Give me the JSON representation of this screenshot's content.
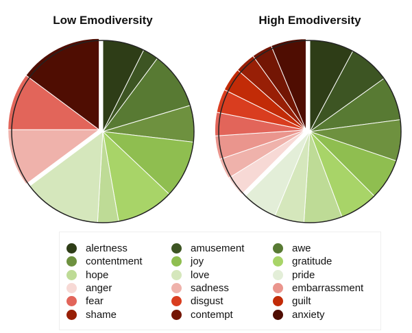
{
  "chart_data": [
    {
      "type": "pie",
      "title": "Low Emodiversity",
      "slices": [
        {
          "label": "alertness",
          "value": 8
        },
        {
          "label": "amusement",
          "value": 3
        },
        {
          "label": "awe",
          "value": 11
        },
        {
          "label": "contentment",
          "value": 7
        },
        {
          "label": "joy",
          "value": 11
        },
        {
          "label": "gratitude",
          "value": 11
        },
        {
          "label": "hope",
          "value": 4
        },
        {
          "label": "love",
          "value": 15
        },
        {
          "label": "sadness",
          "value": 11
        },
        {
          "label": "fear",
          "value": 11
        },
        {
          "label": "anxiety",
          "value": 16
        }
      ]
    },
    {
      "type": "pie",
      "title": "High Emodiversity",
      "slices": [
        {
          "label": "alertness",
          "value": 7.5
        },
        {
          "label": "amusement",
          "value": 7
        },
        {
          "label": "awe",
          "value": 7.5
        },
        {
          "label": "contentment",
          "value": 7
        },
        {
          "label": "joy",
          "value": 7
        },
        {
          "label": "gratitude",
          "value": 6.5
        },
        {
          "label": "hope",
          "value": 6.5
        },
        {
          "label": "love",
          "value": 5
        },
        {
          "label": "pride",
          "value": 6
        },
        {
          "label": "anger",
          "value": 3.5
        },
        {
          "label": "sadness",
          "value": 3.5
        },
        {
          "label": "embarrassment",
          "value": 4
        },
        {
          "label": "fear",
          "value": 4
        },
        {
          "label": "disgust",
          "value": 4
        },
        {
          "label": "guilt",
          "value": 4
        },
        {
          "label": "shame",
          "value": 3.5
        },
        {
          "label": "contempt",
          "value": 3.5
        },
        {
          "label": "anxiety",
          "value": 6
        }
      ]
    }
  ],
  "legend": [
    {
      "label": "alertness",
      "color": "#2e3d17"
    },
    {
      "label": "amusement",
      "color": "#3d5523"
    },
    {
      "label": "awe",
      "color": "#587a33"
    },
    {
      "label": "contentment",
      "color": "#6e913f"
    },
    {
      "label": "joy",
      "color": "#8fbe50"
    },
    {
      "label": "gratitude",
      "color": "#a8d468"
    },
    {
      "label": "hope",
      "color": "#bedb96"
    },
    {
      "label": "love",
      "color": "#d5e7bc"
    },
    {
      "label": "pride",
      "color": "#e3eed8"
    },
    {
      "label": "anger",
      "color": "#f7d9d5"
    },
    {
      "label": "sadness",
      "color": "#efb2ab"
    },
    {
      "label": "embarrassment",
      "color": "#ea958d"
    },
    {
      "label": "fear",
      "color": "#e2655a"
    },
    {
      "label": "disgust",
      "color": "#d93d1f"
    },
    {
      "label": "guilt",
      "color": "#c22b07"
    },
    {
      "label": "shame",
      "color": "#981f06"
    },
    {
      "label": "contempt",
      "color": "#731604"
    },
    {
      "label": "anxiety",
      "color": "#4f0d02"
    }
  ]
}
